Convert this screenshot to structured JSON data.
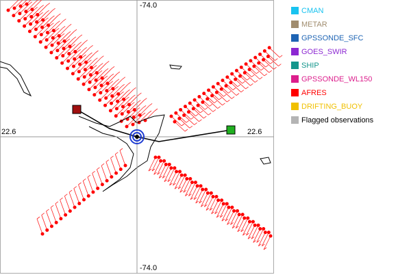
{
  "map": {
    "labels": {
      "top": "-74.0",
      "bottom": "-74.0",
      "left": "22.6",
      "right": "22.6"
    },
    "legend": [
      {
        "name": "CMAN",
        "color": "#19c3f0",
        "text_color": "#19c3f0"
      },
      {
        "name": "METAR",
        "color": "#a08c6e",
        "text_color": "#a08c6e"
      },
      {
        "name": "GPSSONDE_SFC",
        "color": "#1e64b4",
        "text_color": "#1e64b4"
      },
      {
        "name": "GOES_SWIR",
        "color": "#8c28d2",
        "text_color": "#8c28d2"
      },
      {
        "name": "SHIP",
        "color": "#14968c",
        "text_color": "#14968c"
      },
      {
        "name": "GPSSONDE_WL150",
        "color": "#dc1e8c",
        "text_color": "#dc1e8c"
      },
      {
        "name": "AFRES",
        "color": "#ff0000",
        "text_color": "#ff0000"
      },
      {
        "name": "DRIFTING_BUOY",
        "color": "#f0c000",
        "text_color": "#f0c000"
      },
      {
        "name": "Flagged observations",
        "color": "#b4b4b4",
        "text_color": "#000000"
      }
    ]
  }
}
